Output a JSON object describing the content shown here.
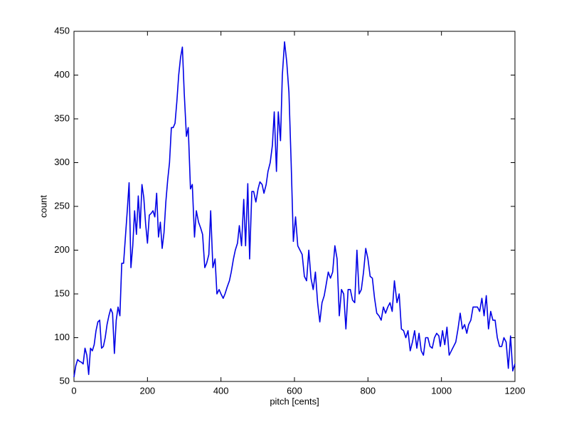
{
  "chart_data": {
    "type": "line",
    "xlabel": "pitch [cents]",
    "ylabel": "count",
    "x": [
      0,
      5,
      10,
      15,
      20,
      25,
      30,
      35,
      40,
      45,
      50,
      55,
      60,
      65,
      70,
      75,
      80,
      85,
      90,
      95,
      100,
      105,
      110,
      115,
      120,
      125,
      130,
      135,
      140,
      145,
      150,
      155,
      160,
      165,
      170,
      175,
      180,
      185,
      190,
      195,
      200,
      205,
      210,
      215,
      220,
      225,
      230,
      235,
      240,
      245,
      250,
      255,
      260,
      265,
      270,
      275,
      280,
      285,
      290,
      295,
      300,
      306,
      311,
      317,
      322,
      328,
      333,
      339,
      345,
      350,
      356,
      361,
      367,
      372,
      378,
      384,
      389,
      395,
      400,
      406,
      411,
      417,
      423,
      428,
      434,
      439,
      445,
      450,
      456,
      462,
      467,
      473,
      478,
      484,
      489,
      495,
      501,
      506,
      512,
      517,
      523,
      528,
      534,
      540,
      545,
      551,
      556,
      562,
      567,
      573,
      579,
      585,
      591,
      597,
      603,
      609,
      615,
      621,
      627,
      633,
      639,
      645,
      651,
      657,
      663,
      669,
      675,
      681,
      686,
      692,
      698,
      704,
      710,
      716,
      722,
      728,
      734,
      740,
      746,
      752,
      758,
      764,
      770,
      776,
      782,
      788,
      794,
      800,
      806,
      812,
      818,
      824,
      830,
      836,
      842,
      848,
      854,
      860,
      866,
      872,
      879,
      885,
      891,
      897,
      903,
      909,
      915,
      921,
      927,
      933,
      939,
      945,
      951,
      957,
      963,
      969,
      975,
      981,
      987,
      993,
      997,
      1003,
      1009,
      1015,
      1021,
      1027,
      1033,
      1039,
      1045,
      1051,
      1057,
      1063,
      1069,
      1074,
      1080,
      1086,
      1092,
      1098,
      1104,
      1110,
      1116,
      1122,
      1128,
      1134,
      1140,
      1146,
      1152,
      1158,
      1164,
      1170,
      1176,
      1182,
      1188,
      1194,
      1200
    ],
    "series": [
      {
        "color": "#0000e6",
        "values": [
          55,
          68,
          75,
          73,
          72,
          70,
          88,
          80,
          58,
          88,
          85,
          92,
          108,
          118,
          120,
          88,
          90,
          100,
          115,
          125,
          133,
          128,
          82,
          120,
          135,
          125,
          185,
          185,
          215,
          245,
          277,
          180,
          205,
          245,
          218,
          262,
          225,
          275,
          260,
          230,
          208,
          240,
          242,
          245,
          238,
          265,
          215,
          232,
          202,
          220,
          255,
          280,
          300,
          340,
          340,
          345,
          370,
          400,
          420,
          432,
          380,
          330,
          340,
          270,
          275,
          215,
          245,
          232,
          225,
          218,
          180,
          185,
          195,
          245,
          180,
          190,
          150,
          155,
          150,
          145,
          150,
          158,
          165,
          175,
          190,
          200,
          208,
          228,
          205,
          258,
          205,
          276,
          190,
          267,
          267,
          255,
          270,
          278,
          275,
          265,
          275,
          290,
          300,
          320,
          358,
          290,
          358,
          325,
          400,
          438,
          415,
          380,
          300,
          210,
          238,
          205,
          200,
          195,
          170,
          165,
          200,
          168,
          155,
          175,
          140,
          118,
          140,
          148,
          160,
          175,
          168,
          175,
          205,
          190,
          125,
          155,
          150,
          110,
          155,
          155,
          143,
          140,
          200,
          150,
          155,
          175,
          202,
          190,
          170,
          168,
          145,
          128,
          125,
          120,
          135,
          128,
          135,
          140,
          130,
          165,
          140,
          150,
          110,
          108,
          100,
          108,
          85,
          95,
          108,
          88,
          105,
          85,
          80,
          100,
          100,
          90,
          88,
          100,
          105,
          102,
          90,
          108,
          92,
          112,
          80,
          85,
          90,
          95,
          110,
          128,
          110,
          115,
          105,
          115,
          120,
          135,
          135,
          135,
          130,
          145,
          125,
          148,
          110,
          130,
          120,
          120,
          100,
          90,
          90,
          100,
          95,
          65,
          102,
          62,
          70
        ]
      }
    ],
    "xlim": [
      0,
      1200
    ],
    "xticks": [
      0,
      200,
      400,
      600,
      800,
      1000,
      1200
    ],
    "ylim": [
      50,
      450
    ],
    "yticks": [
      50,
      100,
      150,
      200,
      250,
      300,
      350,
      400,
      450
    ],
    "grid": false
  }
}
